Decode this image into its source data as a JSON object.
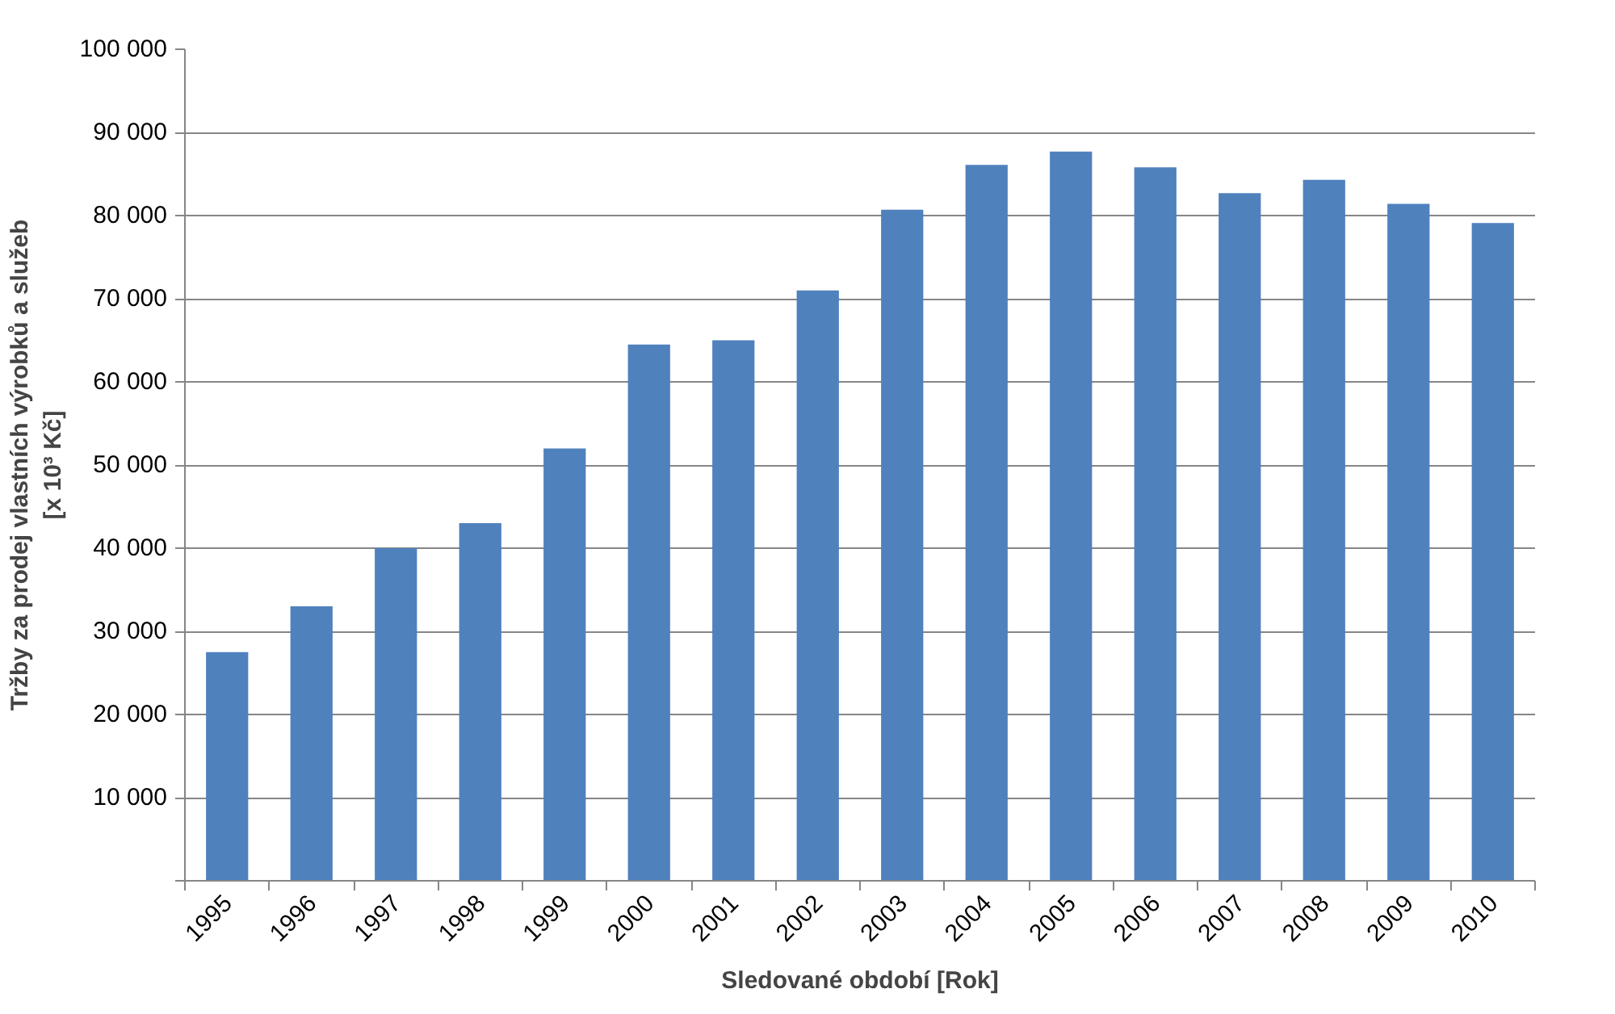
{
  "chart_data": {
    "type": "bar",
    "xlabel": "Sledované období [Rok]",
    "ylabel": "Tržby za prodej vlastních výrobků a služeb\n[x 10³ Kč]",
    "categories": [
      "1995",
      "1996",
      "1997",
      "1998",
      "1999",
      "2000",
      "2001",
      "2002",
      "2003",
      "2004",
      "2005",
      "2006",
      "2007",
      "2008",
      "2009",
      "2010"
    ],
    "values": [
      27500,
      33000,
      40000,
      43000,
      52000,
      64500,
      65000,
      71000,
      80700,
      86100,
      87700,
      85800,
      82700,
      84300,
      81400,
      79100
    ],
    "color": "#4f81bd",
    "ylim": [
      0,
      100000
    ],
    "yticks": [
      {
        "value": 0,
        "label": null
      },
      {
        "value": 10000,
        "label": "10 000"
      },
      {
        "value": 20000,
        "label": "20 000"
      },
      {
        "value": 30000,
        "label": "30 000"
      },
      {
        "value": 40000,
        "label": "40 000"
      },
      {
        "value": 50000,
        "label": "50 000"
      },
      {
        "value": 60000,
        "label": "60 000"
      },
      {
        "value": 70000,
        "label": "70 000"
      },
      {
        "value": 80000,
        "label": "80 000"
      },
      {
        "value": 90000,
        "label": "90 000"
      },
      {
        "value": 100000,
        "label": "100 000"
      }
    ],
    "grid": "y"
  }
}
